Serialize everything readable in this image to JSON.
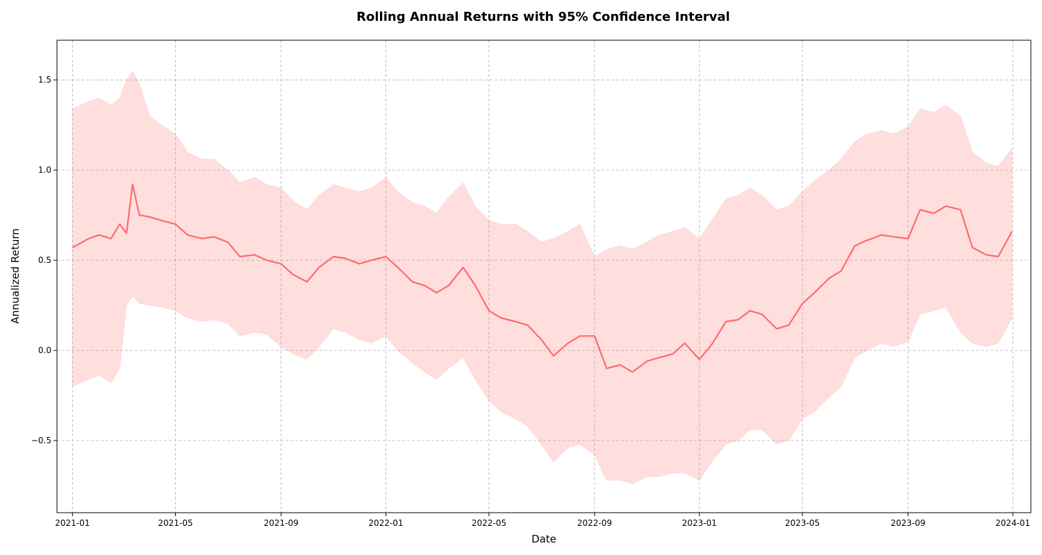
{
  "chart_data": {
    "type": "line",
    "title": "Rolling Annual Returns with 95% Confidence Interval",
    "xlabel": "Date",
    "ylabel": "Annualized Return",
    "xlim": [
      "2020-12-14",
      "2024-01-22"
    ],
    "ylim": [
      -0.9,
      1.72
    ],
    "grid": true,
    "x_ticks": [
      "2021-01-01",
      "2021-05-01",
      "2021-09-01",
      "2022-01-01",
      "2022-05-01",
      "2022-09-01",
      "2023-01-01",
      "2023-05-01",
      "2023-09-01",
      "2024-01-01"
    ],
    "x_tick_labels": [
      "2021-01",
      "2021-05",
      "2021-09",
      "2022-01",
      "2022-05",
      "2022-09",
      "2023-01",
      "2023-05",
      "2023-09",
      "2024-01"
    ],
    "y_ticks": [
      -0.5,
      0.0,
      0.5,
      1.0,
      1.5
    ],
    "y_tick_labels": [
      "−0.5",
      "0.0",
      "0.5",
      "1.0",
      "1.5"
    ],
    "colors": {
      "line": "#ff6b6b",
      "band": "#ff6b6b"
    },
    "series": [
      {
        "x": [
          "2021-01-01",
          "2021-01-20",
          "2021-02-01",
          "2021-02-15",
          "2021-02-25",
          "2021-03-05",
          "2021-03-12",
          "2021-03-20",
          "2021-04-01",
          "2021-04-15",
          "2021-05-01",
          "2021-05-15",
          "2021-06-01",
          "2021-06-15",
          "2021-07-01",
          "2021-07-15",
          "2021-08-01",
          "2021-08-15",
          "2021-09-01",
          "2021-09-15",
          "2021-10-01",
          "2021-10-15",
          "2021-11-01",
          "2021-11-15",
          "2021-12-01",
          "2021-12-15",
          "2022-01-01",
          "2022-01-15",
          "2022-02-01",
          "2022-02-15",
          "2022-03-01",
          "2022-03-15",
          "2022-04-01",
          "2022-04-15",
          "2022-05-01",
          "2022-05-15",
          "2022-06-01",
          "2022-06-15",
          "2022-07-01",
          "2022-07-15",
          "2022-08-01",
          "2022-08-15",
          "2022-09-01",
          "2022-09-15",
          "2022-10-01",
          "2022-10-15",
          "2022-11-01",
          "2022-11-15",
          "2022-12-01",
          "2022-12-15",
          "2023-01-01",
          "2023-01-15",
          "2023-02-01",
          "2023-02-15",
          "2023-03-01",
          "2023-03-15",
          "2023-04-01",
          "2023-04-15",
          "2023-05-01",
          "2023-05-15",
          "2023-06-01",
          "2023-06-15",
          "2023-07-01",
          "2023-07-15",
          "2023-08-01",
          "2023-08-15",
          "2023-09-01",
          "2023-09-15",
          "2023-10-01",
          "2023-10-15",
          "2023-11-01",
          "2023-11-15",
          "2023-12-01",
          "2023-12-15",
          "2023-12-31"
        ],
        "y": [
          0.57,
          0.62,
          0.64,
          0.62,
          0.7,
          0.65,
          0.92,
          0.75,
          0.74,
          0.72,
          0.7,
          0.64,
          0.62,
          0.63,
          0.6,
          0.52,
          0.53,
          0.5,
          0.48,
          0.42,
          0.38,
          0.46,
          0.52,
          0.51,
          0.48,
          0.5,
          0.52,
          0.46,
          0.38,
          0.36,
          0.32,
          0.36,
          0.46,
          0.36,
          0.22,
          0.18,
          0.16,
          0.14,
          0.06,
          -0.03,
          0.04,
          0.08,
          0.08,
          -0.1,
          -0.08,
          -0.12,
          -0.06,
          -0.04,
          -0.02,
          0.04,
          -0.05,
          0.03,
          0.16,
          0.17,
          0.22,
          0.2,
          0.12,
          0.14,
          0.26,
          0.32,
          0.4,
          0.44,
          0.58,
          0.61,
          0.64,
          0.63,
          0.62,
          0.78,
          0.76,
          0.8,
          0.78,
          0.57,
          0.53,
          0.52,
          0.66
        ],
        "lower": [
          -0.2,
          -0.16,
          -0.14,
          -0.18,
          -0.1,
          0.25,
          0.3,
          0.26,
          0.25,
          0.24,
          0.22,
          0.18,
          0.16,
          0.17,
          0.15,
          0.08,
          0.1,
          0.09,
          0.02,
          -0.02,
          -0.05,
          0.02,
          0.12,
          0.1,
          0.06,
          0.04,
          0.08,
          0.0,
          -0.07,
          -0.12,
          -0.16,
          -0.1,
          -0.04,
          -0.16,
          -0.28,
          -0.34,
          -0.38,
          -0.42,
          -0.52,
          -0.62,
          -0.54,
          -0.52,
          -0.58,
          -0.72,
          -0.72,
          -0.74,
          -0.7,
          -0.7,
          -0.68,
          -0.68,
          -0.72,
          -0.62,
          -0.52,
          -0.5,
          -0.44,
          -0.44,
          -0.52,
          -0.5,
          -0.38,
          -0.34,
          -0.26,
          -0.2,
          -0.04,
          0.0,
          0.04,
          0.02,
          0.05,
          0.2,
          0.22,
          0.24,
          0.1,
          0.04,
          0.02,
          0.04,
          0.18
        ],
        "upper": [
          1.34,
          1.38,
          1.4,
          1.36,
          1.4,
          1.5,
          1.55,
          1.48,
          1.3,
          1.25,
          1.2,
          1.1,
          1.06,
          1.06,
          1.0,
          0.93,
          0.96,
          0.92,
          0.9,
          0.83,
          0.78,
          0.86,
          0.92,
          0.9,
          0.88,
          0.9,
          0.96,
          0.88,
          0.82,
          0.8,
          0.76,
          0.85,
          0.93,
          0.8,
          0.72,
          0.7,
          0.7,
          0.66,
          0.6,
          0.62,
          0.66,
          0.7,
          0.52,
          0.56,
          0.58,
          0.56,
          0.6,
          0.64,
          0.66,
          0.68,
          0.62,
          0.72,
          0.84,
          0.86,
          0.9,
          0.86,
          0.78,
          0.8,
          0.88,
          0.94,
          1.0,
          1.06,
          1.16,
          1.2,
          1.22,
          1.2,
          1.24,
          1.34,
          1.32,
          1.36,
          1.3,
          1.1,
          1.04,
          1.02,
          1.12
        ]
      }
    ]
  }
}
